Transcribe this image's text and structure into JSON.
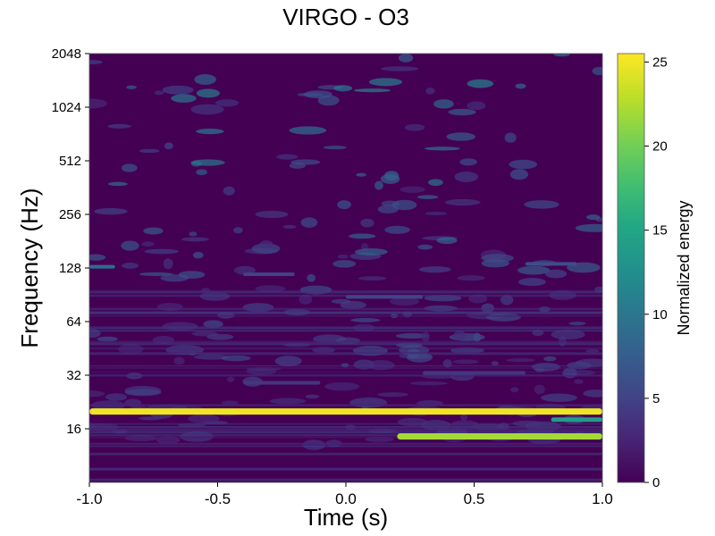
{
  "chart_data": {
    "type": "heatmap",
    "title": "VIRGO - O3",
    "xlabel": "Time (s)",
    "ylabel": "Frequency (Hz)",
    "xlim": [
      -1.0,
      1.0
    ],
    "ylim": [
      8,
      2048
    ],
    "yscale": "log2",
    "x_ticks": [
      -1.0,
      -0.5,
      0.0,
      0.5,
      1.0
    ],
    "x_tick_labels": [
      "-1.0",
      "-0.5",
      "0.0",
      "0.5",
      "1.0"
    ],
    "y_ticks": [
      16,
      32,
      64,
      128,
      256,
      512,
      1024,
      2048
    ],
    "y_tick_labels": [
      "16",
      "32",
      "64",
      "128",
      "256",
      "512",
      "1024",
      "2048"
    ],
    "colormap": "viridis",
    "colorbar": {
      "label": "Normalized energy",
      "range": [
        0,
        25.5
      ],
      "ticks": [
        0,
        5,
        10,
        15,
        20,
        25
      ],
      "tick_labels": [
        "0",
        "5",
        "10",
        "15",
        "20",
        "25"
      ]
    },
    "features": [
      {
        "t_start": -1.0,
        "t_end": 1.0,
        "freq": 20,
        "energy": 25
      },
      {
        "t_start": 0.2,
        "t_end": 1.0,
        "freq": 14.5,
        "energy": 22
      },
      {
        "t_start": 0.8,
        "t_end": 1.0,
        "freq": 18,
        "energy": 14
      },
      {
        "t_start": -1.0,
        "t_end": -0.9,
        "freq": 130,
        "energy": 9
      },
      {
        "t_start": 0.7,
        "t_end": 0.9,
        "freq": 135,
        "energy": 6
      },
      {
        "t_start": -0.4,
        "t_end": -0.1,
        "freq": 29,
        "energy": 4
      },
      {
        "t_start": 0.3,
        "t_end": 0.7,
        "freq": 33,
        "energy": 4
      },
      {
        "t_start": 0.0,
        "t_end": 0.3,
        "freq": 88,
        "energy": 5
      },
      {
        "t_start": -0.4,
        "t_end": -0.2,
        "freq": 118,
        "energy": 5
      }
    ]
  }
}
